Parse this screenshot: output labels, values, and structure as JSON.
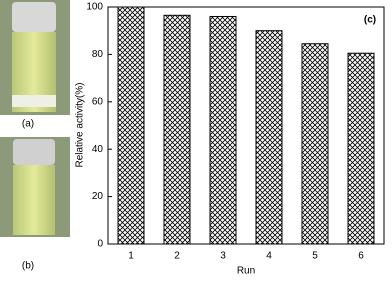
{
  "photo_labels": [
    "(a)",
    "(b)"
  ],
  "chart_data": {
    "type": "bar",
    "annotation": "(c)",
    "x_label": "Run",
    "y_label": "Relative activity(%)",
    "categories": [
      "1",
      "2",
      "3",
      "4",
      "5",
      "6"
    ],
    "values": [
      100,
      96.5,
      96,
      90,
      84.5,
      80.5
    ],
    "color": "#000000",
    "ylim": [
      0,
      100
    ],
    "yticks": [
      0,
      20,
      40,
      60,
      80,
      100
    ],
    "grid": false
  }
}
